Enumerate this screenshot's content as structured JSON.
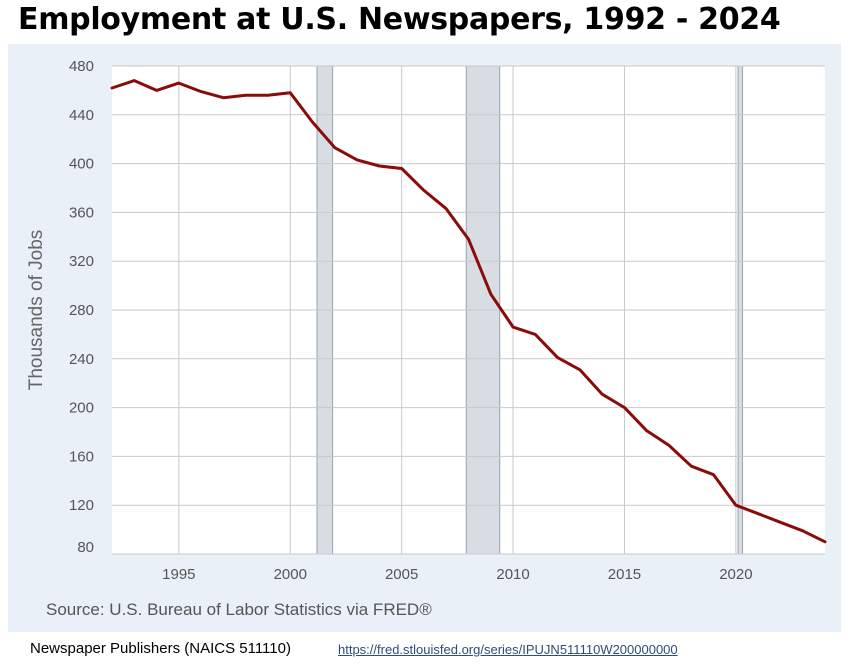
{
  "title": "Employment at U.S. Newspapers, 1992 - 2024",
  "source": "Source: U.S. Bureau of Labor Statistics via FRED®",
  "footer": {
    "series_name": "Newspaper Publishers (NAICS 511110)",
    "link_text": "https://fred.stlouisfed.org/series/IPUJN511110W200000000"
  },
  "colors": {
    "line": "#8b0a0a",
    "recession": "#d8dde4",
    "panel": "#e9f0f8",
    "plot": "#ffffff",
    "grid": "#c9c9c9"
  },
  "chart_data": {
    "type": "line",
    "title": "Employment at U.S. Newspapers, 1992 - 2024",
    "xlabel": "",
    "ylabel": "Thousands of Jobs",
    "xlim": [
      1992,
      2024
    ],
    "ylim": [
      80,
      480
    ],
    "x_ticks": [
      1995,
      2000,
      2005,
      2010,
      2015,
      2020
    ],
    "y_ticks": [
      80,
      120,
      160,
      200,
      240,
      280,
      320,
      360,
      400,
      440,
      480
    ],
    "grid": true,
    "recessions": [
      [
        2001.2,
        2001.9
      ],
      [
        2007.9,
        2009.4
      ],
      [
        2020.1,
        2020.3
      ]
    ],
    "series": [
      {
        "x": [
          1992,
          1993,
          1994,
          1995,
          1996,
          1997,
          1998,
          1999,
          2000,
          2001,
          2002,
          2003,
          2004,
          2005,
          2006,
          2007,
          2008,
          2009,
          2010,
          2011,
          2012,
          2013,
          2014,
          2015,
          2016,
          2017,
          2018,
          2019,
          2020,
          2021,
          2022,
          2023,
          2024
        ],
        "values": [
          462,
          468,
          460,
          466,
          459,
          454,
          456,
          456,
          458,
          434,
          413,
          403,
          398,
          396,
          378,
          363,
          338,
          293,
          266,
          260,
          241,
          231,
          211,
          200,
          181,
          169,
          152,
          145,
          120,
          113,
          106,
          99,
          90
        ]
      }
    ]
  }
}
